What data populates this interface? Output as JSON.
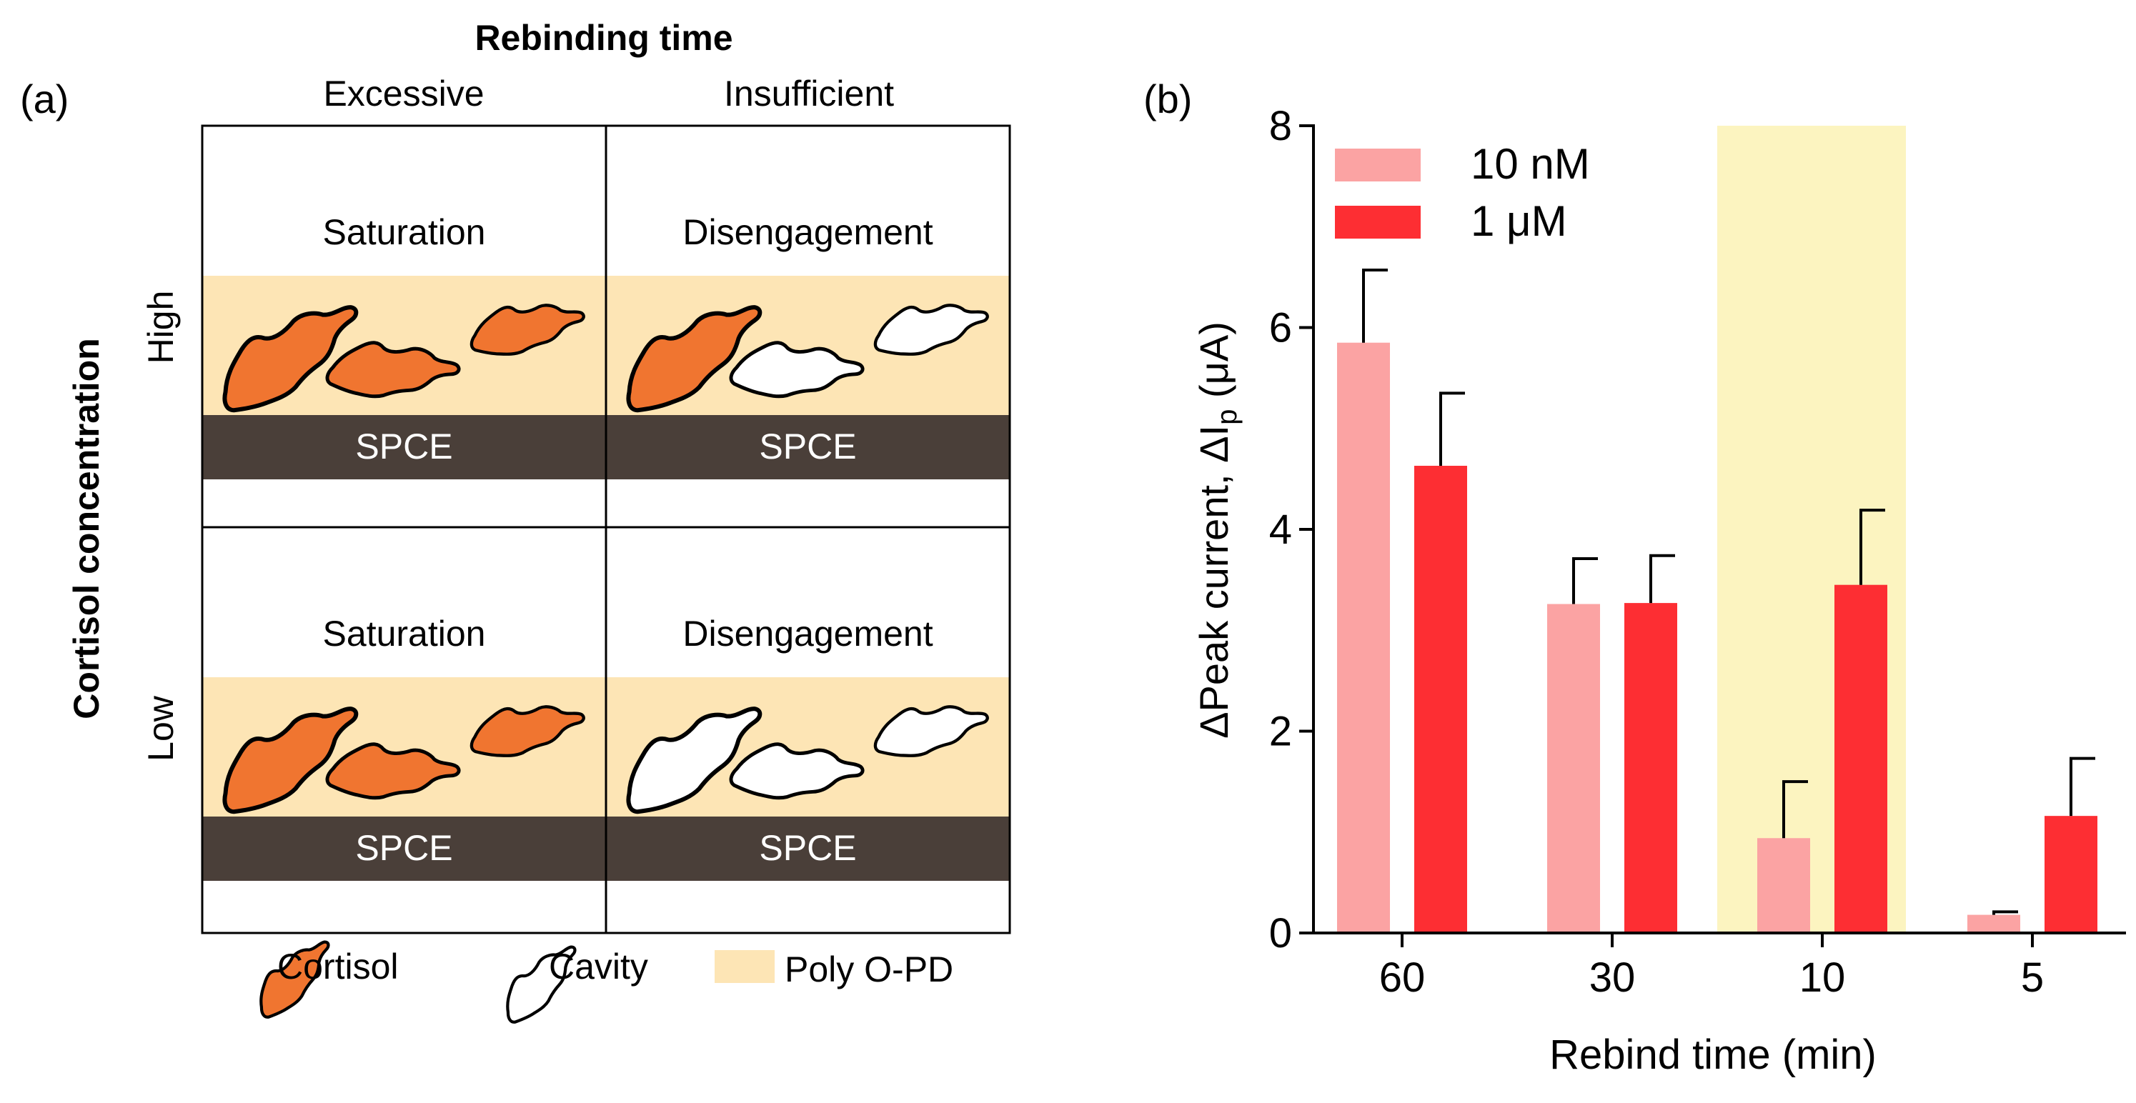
{
  "panel_a": {
    "label": "(a)",
    "top_title": "Rebinding time",
    "col_headers": [
      "Excessive",
      "Insufficient"
    ],
    "row_title": "Cortisol concentration",
    "row_headers": [
      "High",
      "Low"
    ],
    "cells": [
      {
        "state": "Saturation",
        "electrode": "SPCE",
        "molecules": [
          "cortisol",
          "cortisol",
          "cortisol"
        ]
      },
      {
        "state": "Disengagement",
        "electrode": "SPCE",
        "molecules": [
          "cortisol",
          "cavity",
          "cavity"
        ]
      },
      {
        "state": "Saturation",
        "electrode": "SPCE",
        "molecules": [
          "cortisol",
          "cortisol",
          "cortisol"
        ]
      },
      {
        "state": "Disengagement",
        "electrode": "SPCE",
        "molecules": [
          "cavity",
          "cavity",
          "cavity"
        ]
      }
    ],
    "legend": {
      "cortisol": "Cortisol",
      "cavity": "Cavity",
      "polymer": "Poly O-PD"
    },
    "colors": {
      "cortisol": "#f07530",
      "cavity": "#ffffff",
      "polymer": "#fde5b5",
      "electrode": "#4a3f39"
    }
  },
  "chart_data": {
    "panel_label": "(b)",
    "type": "bar",
    "title": "",
    "xlabel": "Rebind time (min)",
    "ylabel": "ΔPeak current, ΔI_p (μA)",
    "ylabel_parts": {
      "main": "ΔPeak current, ΔI",
      "sub": "p",
      "unit": " (μA)"
    },
    "categories": [
      "60",
      "30",
      "10",
      "5"
    ],
    "ylim": [
      0,
      8
    ],
    "yticks": [
      0,
      2,
      4,
      6,
      8
    ],
    "series": [
      {
        "name": "10 nM",
        "color": "#fba3a3",
        "values": [
          5.85,
          3.26,
          0.94,
          0.18
        ],
        "errors": [
          0.72,
          0.45,
          0.56,
          0.03
        ]
      },
      {
        "name": "1 μM",
        "color": "#fd2e33",
        "values": [
          4.63,
          3.27,
          3.45,
          1.16
        ],
        "errors": [
          0.72,
          0.47,
          0.74,
          0.57
        ]
      }
    ],
    "highlight": {
      "category": "10",
      "color": "#fcf4c0"
    },
    "legend_position": "top-left"
  }
}
